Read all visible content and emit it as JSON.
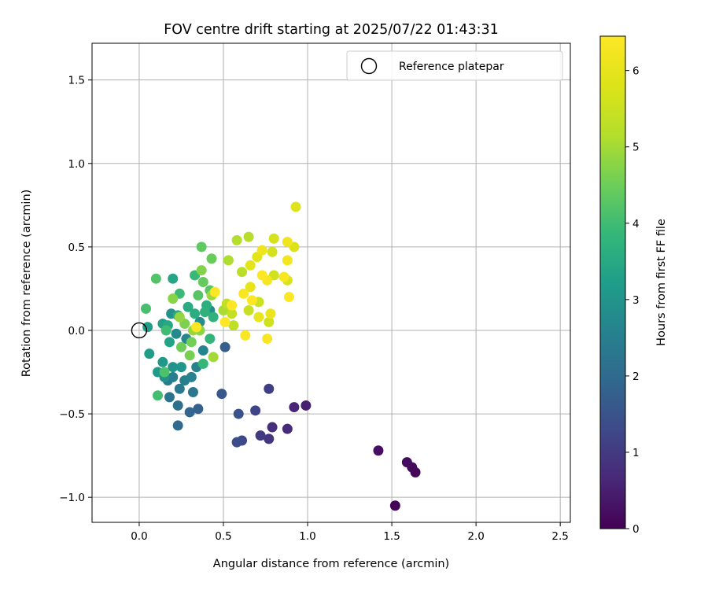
{
  "chart_data": {
    "type": "scatter",
    "title": "FOV centre drift starting at 2025/07/22 01:43:31",
    "xlabel": "Angular distance from reference (arcmin)",
    "ylabel": "Rotation from reference (arcmin)",
    "xlim": [
      -0.28,
      2.56
    ],
    "ylim": [
      -1.15,
      1.72
    ],
    "x_ticks": [
      0.0,
      0.5,
      1.0,
      1.5,
      2.0,
      2.5
    ],
    "x_tick_labels": [
      "0.0",
      "0.5",
      "1.0",
      "1.5",
      "2.0",
      "2.5"
    ],
    "y_ticks": [
      -1.0,
      -0.5,
      0.0,
      0.5,
      1.0,
      1.5
    ],
    "y_tick_labels": [
      "−1.0",
      "−0.5",
      "0.0",
      "0.5",
      "1.0",
      "1.5"
    ],
    "grid": true,
    "legend": {
      "placement": "top-right",
      "entries": [
        "Reference platepar"
      ]
    },
    "reference_point": {
      "x": 0.0,
      "y": 0.0
    },
    "colorbar": {
      "label": "Hours from first FF file",
      "colormap": "viridis",
      "range": [
        0,
        6.45
      ],
      "ticks": [
        0,
        1,
        2,
        3,
        4,
        5,
        6
      ],
      "tick_labels": [
        "0",
        "1",
        "2",
        "3",
        "4",
        "5",
        "6"
      ]
    },
    "points": [
      [
        1.52,
        -1.05,
        0.05
      ],
      [
        1.64,
        -0.85,
        0.1
      ],
      [
        1.62,
        -0.82,
        0.15
      ],
      [
        1.59,
        -0.79,
        0.2
      ],
      [
        1.42,
        -0.72,
        0.25
      ],
      [
        0.99,
        -0.45,
        0.5
      ],
      [
        0.92,
        -0.46,
        0.6
      ],
      [
        0.88,
        -0.59,
        0.7
      ],
      [
        0.79,
        -0.58,
        0.8
      ],
      [
        0.77,
        -0.65,
        0.9
      ],
      [
        0.72,
        -0.63,
        1.0
      ],
      [
        0.77,
        -0.35,
        1.1
      ],
      [
        0.69,
        -0.48,
        1.2
      ],
      [
        0.61,
        -0.66,
        1.3
      ],
      [
        0.58,
        -0.67,
        1.4
      ],
      [
        0.59,
        -0.5,
        1.5
      ],
      [
        0.49,
        -0.38,
        1.6
      ],
      [
        0.51,
        -0.1,
        1.7
      ],
      [
        0.35,
        -0.47,
        1.8
      ],
      [
        0.3,
        -0.49,
        1.9
      ],
      [
        0.23,
        -0.57,
        2.0
      ],
      [
        0.23,
        -0.45,
        2.1
      ],
      [
        0.18,
        -0.4,
        2.2
      ],
      [
        0.32,
        -0.37,
        2.3
      ],
      [
        0.24,
        -0.35,
        2.35
      ],
      [
        0.17,
        -0.3,
        2.4
      ],
      [
        0.2,
        -0.28,
        2.45
      ],
      [
        0.27,
        -0.3,
        2.5
      ],
      [
        0.31,
        -0.28,
        2.55
      ],
      [
        0.34,
        -0.22,
        2.6
      ],
      [
        0.38,
        -0.12,
        2.65
      ],
      [
        0.28,
        -0.05,
        2.7
      ],
      [
        0.22,
        -0.02,
        2.75
      ],
      [
        0.42,
        0.12,
        2.8
      ],
      [
        0.36,
        0.05,
        2.85
      ],
      [
        0.19,
        0.1,
        2.9
      ],
      [
        0.15,
        -0.28,
        2.95
      ],
      [
        0.2,
        -0.22,
        3.0
      ],
      [
        0.25,
        -0.22,
        3.05
      ],
      [
        0.14,
        -0.19,
        3.1
      ],
      [
        0.11,
        -0.25,
        3.15
      ],
      [
        0.06,
        -0.14,
        3.2
      ],
      [
        0.05,
        0.02,
        3.25
      ],
      [
        0.14,
        0.04,
        3.3
      ],
      [
        0.18,
        -0.07,
        3.35
      ],
      [
        0.2,
        0.31,
        3.4
      ],
      [
        0.17,
        0.03,
        3.45
      ],
      [
        0.23,
        0.09,
        3.5
      ],
      [
        0.29,
        0.14,
        3.55
      ],
      [
        0.33,
        0.1,
        3.6
      ],
      [
        0.4,
        0.15,
        3.65
      ],
      [
        0.39,
        0.11,
        3.7
      ],
      [
        0.44,
        0.08,
        3.75
      ],
      [
        0.42,
        -0.05,
        3.8
      ],
      [
        0.38,
        -0.2,
        3.85
      ],
      [
        0.33,
        0.33,
        3.9
      ],
      [
        0.24,
        0.22,
        3.95
      ],
      [
        0.16,
        0.0,
        4.0
      ],
      [
        0.11,
        -0.39,
        4.05
      ],
      [
        0.04,
        0.13,
        4.1
      ],
      [
        0.15,
        -0.25,
        4.15
      ],
      [
        0.1,
        0.31,
        4.2
      ],
      [
        0.35,
        0.21,
        4.25
      ],
      [
        0.42,
        0.24,
        4.3
      ],
      [
        0.37,
        0.5,
        4.35
      ],
      [
        0.38,
        0.29,
        4.4
      ],
      [
        0.43,
        0.43,
        4.45
      ],
      [
        0.25,
        -0.1,
        4.5
      ],
      [
        0.31,
        -0.07,
        4.55
      ],
      [
        0.3,
        -0.15,
        4.6
      ],
      [
        0.27,
        0.04,
        4.65
      ],
      [
        0.37,
        0.36,
        4.7
      ],
      [
        0.2,
        0.19,
        4.75
      ],
      [
        0.36,
        0.0,
        4.8
      ],
      [
        0.24,
        0.08,
        4.85
      ],
      [
        0.32,
        0.0,
        4.9
      ],
      [
        0.43,
        0.21,
        4.95
      ],
      [
        0.44,
        -0.16,
        5.0
      ],
      [
        0.5,
        0.12,
        5.05
      ],
      [
        0.53,
        0.42,
        5.1
      ],
      [
        0.58,
        0.54,
        5.15
      ],
      [
        0.65,
        0.56,
        5.2
      ],
      [
        0.61,
        0.35,
        5.25
      ],
      [
        0.56,
        0.03,
        5.3
      ],
      [
        0.52,
        0.16,
        5.35
      ],
      [
        0.55,
        0.1,
        5.4
      ],
      [
        0.65,
        0.12,
        5.45
      ],
      [
        0.71,
        0.17,
        5.5
      ],
      [
        0.77,
        0.05,
        5.55
      ],
      [
        0.8,
        0.33,
        5.6
      ],
      [
        0.79,
        0.47,
        5.65
      ],
      [
        0.8,
        0.55,
        5.7
      ],
      [
        0.88,
        0.3,
        5.75
      ],
      [
        0.92,
        0.5,
        5.8
      ],
      [
        0.93,
        0.74,
        5.85
      ],
      [
        0.7,
        0.44,
        5.9
      ],
      [
        0.66,
        0.39,
        5.95
      ],
      [
        0.66,
        0.26,
        6.0
      ],
      [
        0.71,
        0.08,
        6.05
      ],
      [
        0.78,
        0.1,
        6.1
      ],
      [
        0.73,
        0.48,
        6.15
      ],
      [
        0.88,
        0.53,
        6.2
      ],
      [
        0.88,
        0.42,
        6.25
      ],
      [
        0.76,
        0.3,
        6.3
      ],
      [
        0.86,
        0.32,
        6.32
      ],
      [
        0.62,
        0.22,
        6.34
      ],
      [
        0.76,
        -0.05,
        6.36
      ],
      [
        0.63,
        -0.03,
        6.38
      ],
      [
        0.45,
        0.23,
        6.4
      ],
      [
        0.89,
        0.2,
        6.42
      ],
      [
        0.73,
        0.33,
        6.44
      ],
      [
        0.67,
        0.18,
        6.45
      ],
      [
        0.55,
        0.15,
        6.45
      ],
      [
        0.34,
        0.02,
        6.45
      ],
      [
        0.51,
        0.05,
        6.45
      ]
    ]
  }
}
